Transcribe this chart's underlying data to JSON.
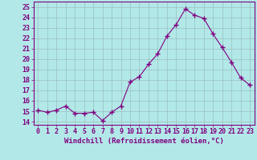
{
  "x": [
    0,
    1,
    2,
    3,
    4,
    5,
    6,
    7,
    8,
    9,
    10,
    11,
    12,
    13,
    14,
    15,
    16,
    17,
    18,
    19,
    20,
    21,
    22,
    23
  ],
  "y": [
    15.1,
    14.9,
    15.1,
    15.5,
    14.8,
    14.8,
    14.9,
    14.1,
    14.9,
    15.5,
    17.8,
    18.3,
    19.5,
    20.5,
    22.2,
    23.3,
    24.8,
    24.2,
    23.9,
    22.4,
    21.1,
    19.7,
    18.2,
    17.5
  ],
  "line_color": "#800080",
  "marker": "+",
  "marker_size": 4,
  "bg_color": "#b2e8e8",
  "grid_color": "#9bbfbf",
  "xlabel": "Windchill (Refroidissement éolien,°C)",
  "xlabel_color": "#800080",
  "xlabel_fontsize": 6.5,
  "tick_color": "#800080",
  "tick_fontsize": 6.0,
  "ytick_labels": [
    "14",
    "15",
    "16",
    "17",
    "18",
    "19",
    "20",
    "21",
    "22",
    "23",
    "24",
    "25"
  ],
  "ylim": [
    13.7,
    25.5
  ],
  "xlim": [
    -0.5,
    23.5
  ],
  "xtick_labels": [
    "0",
    "1",
    "2",
    "3",
    "4",
    "5",
    "6",
    "7",
    "8",
    "9",
    "10",
    "11",
    "12",
    "13",
    "14",
    "15",
    "16",
    "17",
    "18",
    "19",
    "20",
    "21",
    "22",
    "23"
  ],
  "spine_color": "#800080",
  "axis_bg": "#b2e8e8"
}
